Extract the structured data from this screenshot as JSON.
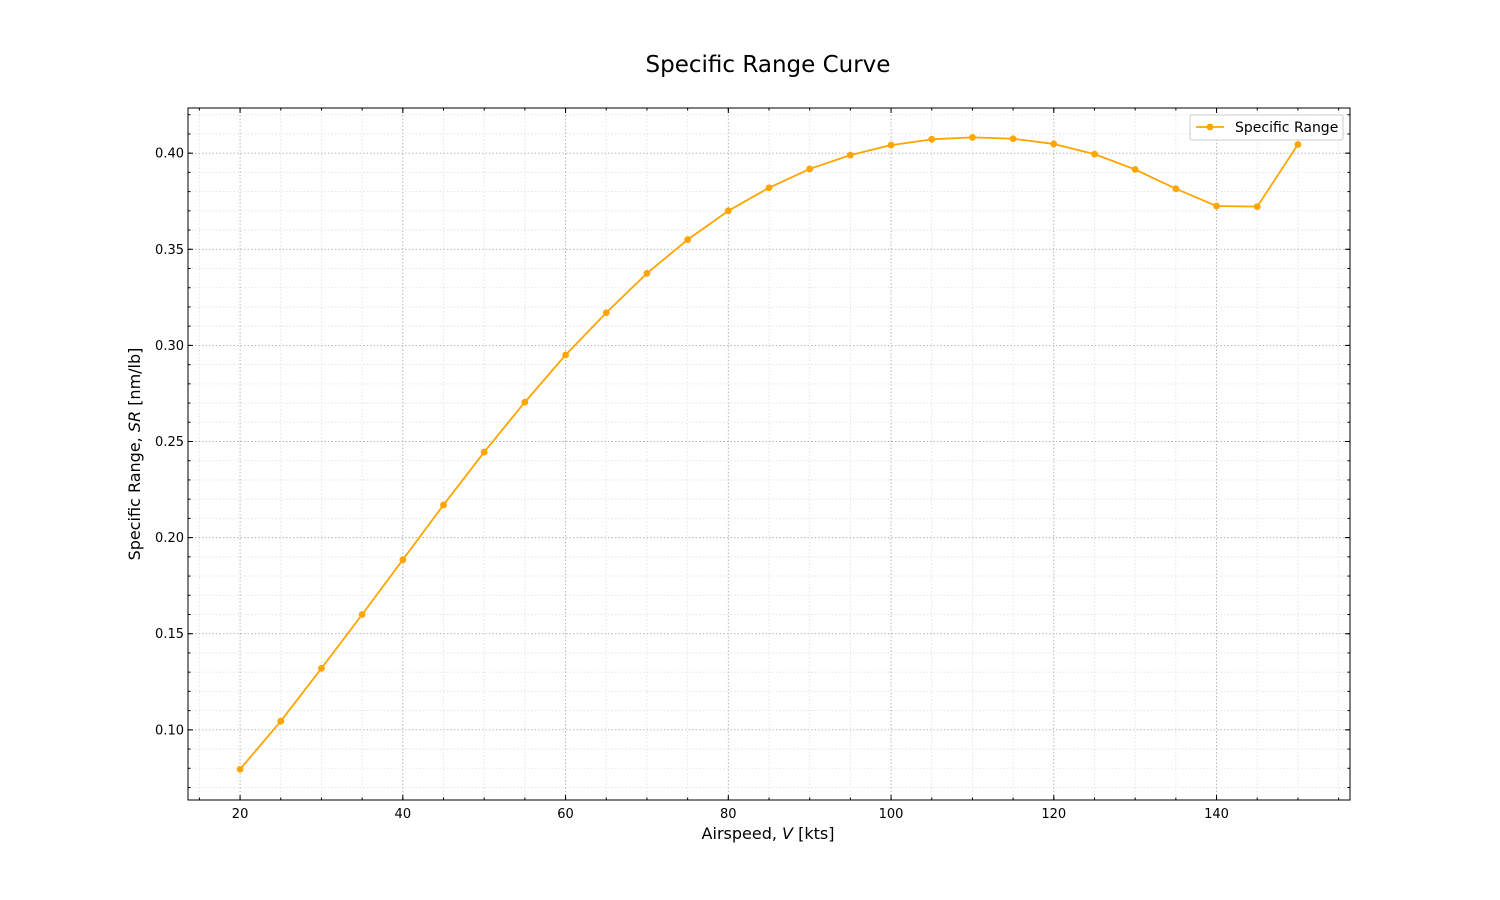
{
  "chart_data": {
    "type": "line",
    "title": "Specific Range Curve",
    "xlabel": {
      "prefix": "Airspeed, ",
      "symbol": "V",
      "suffix": " [kts]"
    },
    "ylabel": {
      "prefix": "Specific Range, ",
      "symbol": "SR",
      "suffix": " [nm/lb]"
    },
    "xlim": [
      13.6,
      156.4
    ],
    "ylim": [
      0.0635,
      0.4235
    ],
    "xticks": [
      20,
      40,
      60,
      80,
      100,
      120,
      140
    ],
    "yticks": [
      0.1,
      0.15,
      0.2,
      0.25,
      0.3,
      0.35,
      0.4
    ],
    "xtick_labels": [
      "20",
      "40",
      "60",
      "80",
      "100",
      "120",
      "140"
    ],
    "ytick_labels": [
      "0.10",
      "0.15",
      "0.20",
      "0.25",
      "0.30",
      "0.35",
      "0.40"
    ],
    "x_minor_step": 5,
    "y_minor_step": 0.01,
    "grid": true,
    "legend_position": "top-right",
    "series": [
      {
        "name": "Specific Range",
        "color": "#ffa500",
        "marker": "circle",
        "x": [
          20,
          25,
          30,
          35,
          40,
          45,
          50,
          55,
          60,
          65,
          70,
          75,
          80,
          85,
          90,
          95,
          100,
          105,
          110,
          115,
          120,
          125,
          130,
          135,
          140,
          145,
          150
        ],
        "y": [
          0.0795,
          0.1045,
          0.132,
          0.16,
          0.1885,
          0.217,
          0.2445,
          0.2705,
          0.295,
          0.317,
          0.3375,
          0.355,
          0.37,
          0.382,
          0.3918,
          0.399,
          0.4042,
          0.4072,
          0.4082,
          0.4075,
          0.4048,
          0.3995,
          0.3915,
          0.3815,
          0.3725,
          0.3722,
          0.4045
        ]
      }
    ]
  }
}
